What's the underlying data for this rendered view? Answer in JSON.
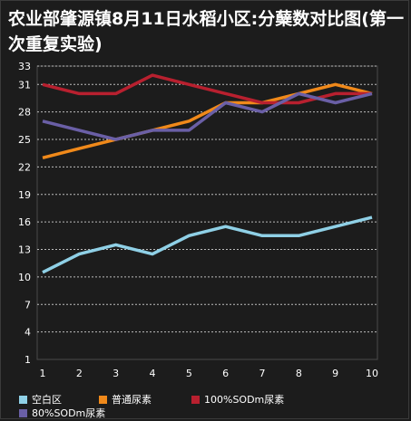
{
  "chart_data": {
    "type": "line",
    "title": "农业部肇源镇8月11日水稻小区:分蘖数对比图(第一次重复实验)",
    "xlabel": "",
    "ylabel": "",
    "x": [
      1,
      2,
      3,
      4,
      5,
      6,
      7,
      8,
      9,
      10
    ],
    "yticks": [
      1,
      4,
      7,
      10,
      13,
      16,
      19,
      22,
      25,
      28,
      31,
      33
    ],
    "ylim": [
      1,
      33
    ],
    "grid": true,
    "legend_position": "bottom",
    "series": [
      {
        "name": "空白区",
        "color": "#8fd0e6",
        "values": [
          10.5,
          12.5,
          13.5,
          12.5,
          14.5,
          15.5,
          14.5,
          14.5,
          15.5,
          16.5
        ]
      },
      {
        "name": "普通尿素",
        "color": "#f0891a",
        "values": [
          23,
          24,
          25,
          26,
          27,
          29,
          29,
          30,
          31,
          30
        ]
      },
      {
        "name": "100%SODm尿素",
        "color": "#b8202f",
        "values": [
          31,
          30,
          30,
          32,
          31,
          30,
          29,
          29,
          30,
          30
        ]
      },
      {
        "name": "80%SODm尿素",
        "color": "#6a5fa6",
        "values": [
          27,
          26,
          25,
          26,
          26,
          29,
          28,
          30,
          29,
          30
        ]
      }
    ]
  }
}
